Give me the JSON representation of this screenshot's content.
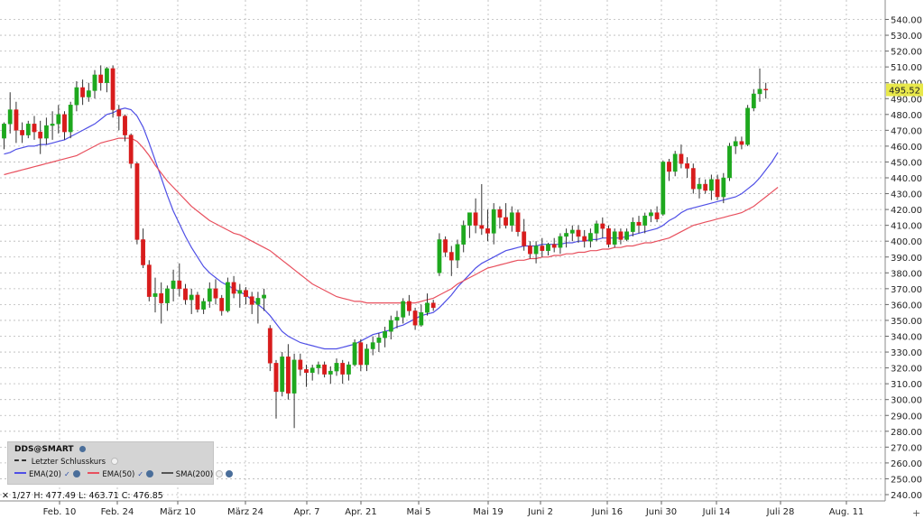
{
  "chart_data": {
    "type": "candlestick",
    "symbol": "DDS@SMART",
    "y_axis": {
      "min": 240,
      "max": 540,
      "step": 10,
      "position": "right",
      "tick_labels": [
        "240.00",
        "250.00",
        "260.00",
        "270.00",
        "280.00",
        "290.00",
        "300.00",
        "310.00",
        "320.00",
        "330.00",
        "340.00",
        "350.00",
        "360.00",
        "370.00",
        "380.00",
        "390.00",
        "400.00",
        "410.00",
        "420.00",
        "430.00",
        "440.00",
        "450.00",
        "460.00",
        "470.00",
        "480.00",
        "490.00",
        "500.00",
        "510.00",
        "520.00",
        "530.00",
        "540.00"
      ]
    },
    "x_axis": {
      "tick_labels": [
        "Feb. 10",
        "Feb. 24",
        "März 10",
        "März 24",
        "Apr. 7",
        "Apr. 21",
        "Mai 5",
        "Mai 19",
        "Juni 2",
        "Juni 16",
        "Juni 30",
        "Juli 14",
        "Juli 28",
        "Aug. 11"
      ]
    },
    "grid": true,
    "last_price": "495.52",
    "last_price_color": "#e8e84a",
    "up_color": "#1ea81e",
    "down_color": "#d81c1c",
    "candles": [
      {
        "o": 465,
        "h": 475,
        "l": 458,
        "c": 474
      },
      {
        "o": 474,
        "h": 494,
        "l": 468,
        "c": 483
      },
      {
        "o": 483,
        "h": 488,
        "l": 462,
        "c": 470
      },
      {
        "o": 470,
        "h": 475,
        "l": 462,
        "c": 467
      },
      {
        "o": 467,
        "h": 476,
        "l": 465,
        "c": 474
      },
      {
        "o": 474,
        "h": 479,
        "l": 464,
        "c": 469
      },
      {
        "o": 469,
        "h": 476,
        "l": 455,
        "c": 465
      },
      {
        "o": 465,
        "h": 478,
        "l": 461,
        "c": 473
      },
      {
        "o": 473,
        "h": 482,
        "l": 464,
        "c": 474
      },
      {
        "o": 474,
        "h": 486,
        "l": 468,
        "c": 480
      },
      {
        "o": 480,
        "h": 482,
        "l": 464,
        "c": 469
      },
      {
        "o": 469,
        "h": 488,
        "l": 465,
        "c": 486
      },
      {
        "o": 486,
        "h": 501,
        "l": 482,
        "c": 497
      },
      {
        "o": 497,
        "h": 502,
        "l": 486,
        "c": 491
      },
      {
        "o": 491,
        "h": 500,
        "l": 488,
        "c": 495
      },
      {
        "o": 495,
        "h": 508,
        "l": 490,
        "c": 505
      },
      {
        "o": 505,
        "h": 511,
        "l": 495,
        "c": 500
      },
      {
        "o": 500,
        "h": 510,
        "l": 494,
        "c": 509
      },
      {
        "o": 509,
        "h": 511,
        "l": 478,
        "c": 483
      },
      {
        "o": 483,
        "h": 486,
        "l": 470,
        "c": 479
      },
      {
        "o": 479,
        "h": 480,
        "l": 463,
        "c": 467
      },
      {
        "o": 467,
        "h": 468,
        "l": 446,
        "c": 449
      },
      {
        "o": 449,
        "h": 450,
        "l": 398,
        "c": 401
      },
      {
        "o": 401,
        "h": 408,
        "l": 383,
        "c": 385
      },
      {
        "o": 385,
        "h": 388,
        "l": 362,
        "c": 365
      },
      {
        "o": 365,
        "h": 377,
        "l": 355,
        "c": 367
      },
      {
        "o": 367,
        "h": 374,
        "l": 348,
        "c": 361
      },
      {
        "o": 361,
        "h": 372,
        "l": 356,
        "c": 370
      },
      {
        "o": 370,
        "h": 382,
        "l": 362,
        "c": 375
      },
      {
        "o": 375,
        "h": 386,
        "l": 365,
        "c": 370
      },
      {
        "o": 370,
        "h": 373,
        "l": 360,
        "c": 363
      },
      {
        "o": 363,
        "h": 370,
        "l": 354,
        "c": 366
      },
      {
        "o": 366,
        "h": 368,
        "l": 355,
        "c": 357
      },
      {
        "o": 357,
        "h": 364,
        "l": 354,
        "c": 362
      },
      {
        "o": 362,
        "h": 374,
        "l": 358,
        "c": 370
      },
      {
        "o": 370,
        "h": 376,
        "l": 360,
        "c": 364
      },
      {
        "o": 364,
        "h": 366,
        "l": 353,
        "c": 356
      },
      {
        "o": 356,
        "h": 377,
        "l": 355,
        "c": 374
      },
      {
        "o": 374,
        "h": 378,
        "l": 364,
        "c": 367
      },
      {
        "o": 367,
        "h": 373,
        "l": 358,
        "c": 369
      },
      {
        "o": 369,
        "h": 371,
        "l": 360,
        "c": 365
      },
      {
        "o": 365,
        "h": 368,
        "l": 354,
        "c": 360
      },
      {
        "o": 360,
        "h": 368,
        "l": 348,
        "c": 364
      },
      {
        "o": 364,
        "h": 370,
        "l": 356,
        "c": 366
      },
      {
        "o": 345,
        "h": 347,
        "l": 318,
        "c": 323
      },
      {
        "o": 323,
        "h": 325,
        "l": 288,
        "c": 305
      },
      {
        "o": 305,
        "h": 330,
        "l": 302,
        "c": 327
      },
      {
        "o": 327,
        "h": 335,
        "l": 300,
        "c": 304
      },
      {
        "o": 304,
        "h": 329,
        "l": 282,
        "c": 325
      },
      {
        "o": 325,
        "h": 329,
        "l": 315,
        "c": 319
      },
      {
        "o": 319,
        "h": 322,
        "l": 308,
        "c": 317
      },
      {
        "o": 317,
        "h": 322,
        "l": 312,
        "c": 320
      },
      {
        "o": 320,
        "h": 324,
        "l": 316,
        "c": 322
      },
      {
        "o": 322,
        "h": 324,
        "l": 314,
        "c": 316
      },
      {
        "o": 316,
        "h": 321,
        "l": 310,
        "c": 318
      },
      {
        "o": 318,
        "h": 326,
        "l": 315,
        "c": 323
      },
      {
        "o": 323,
        "h": 325,
        "l": 310,
        "c": 316
      },
      {
        "o": 316,
        "h": 324,
        "l": 312,
        "c": 322
      },
      {
        "o": 322,
        "h": 338,
        "l": 321,
        "c": 336
      },
      {
        "o": 336,
        "h": 338,
        "l": 318,
        "c": 322
      },
      {
        "o": 322,
        "h": 335,
        "l": 318,
        "c": 332
      },
      {
        "o": 332,
        "h": 340,
        "l": 328,
        "c": 336
      },
      {
        "o": 336,
        "h": 342,
        "l": 330,
        "c": 339
      },
      {
        "o": 339,
        "h": 346,
        "l": 333,
        "c": 343
      },
      {
        "o": 343,
        "h": 353,
        "l": 338,
        "c": 350
      },
      {
        "o": 350,
        "h": 356,
        "l": 345,
        "c": 352
      },
      {
        "o": 352,
        "h": 364,
        "l": 348,
        "c": 362
      },
      {
        "o": 362,
        "h": 366,
        "l": 353,
        "c": 356
      },
      {
        "o": 356,
        "h": 358,
        "l": 344,
        "c": 347
      },
      {
        "o": 347,
        "h": 360,
        "l": 346,
        "c": 355
      },
      {
        "o": 355,
        "h": 367,
        "l": 353,
        "c": 361
      },
      {
        "o": 361,
        "h": 363,
        "l": 356,
        "c": 358
      },
      {
        "o": 380,
        "h": 405,
        "l": 378,
        "c": 401
      },
      {
        "o": 401,
        "h": 403,
        "l": 390,
        "c": 393
      },
      {
        "o": 393,
        "h": 397,
        "l": 378,
        "c": 388
      },
      {
        "o": 388,
        "h": 401,
        "l": 383,
        "c": 398
      },
      {
        "o": 398,
        "h": 413,
        "l": 393,
        "c": 410
      },
      {
        "o": 410,
        "h": 418,
        "l": 402,
        "c": 418
      },
      {
        "o": 418,
        "h": 427,
        "l": 405,
        "c": 410
      },
      {
        "o": 410,
        "h": 436,
        "l": 404,
        "c": 408
      },
      {
        "o": 408,
        "h": 420,
        "l": 400,
        "c": 405
      },
      {
        "o": 405,
        "h": 424,
        "l": 398,
        "c": 420
      },
      {
        "o": 420,
        "h": 422,
        "l": 408,
        "c": 415
      },
      {
        "o": 415,
        "h": 424,
        "l": 408,
        "c": 410
      },
      {
        "o": 410,
        "h": 422,
        "l": 406,
        "c": 418
      },
      {
        "o": 418,
        "h": 420,
        "l": 403,
        "c": 406
      },
      {
        "o": 406,
        "h": 414,
        "l": 394,
        "c": 397
      },
      {
        "o": 397,
        "h": 400,
        "l": 389,
        "c": 392
      },
      {
        "o": 392,
        "h": 400,
        "l": 386,
        "c": 397
      },
      {
        "o": 397,
        "h": 402,
        "l": 390,
        "c": 394
      },
      {
        "o": 394,
        "h": 399,
        "l": 391,
        "c": 398
      },
      {
        "o": 398,
        "h": 402,
        "l": 393,
        "c": 396
      },
      {
        "o": 396,
        "h": 405,
        "l": 392,
        "c": 403
      },
      {
        "o": 403,
        "h": 408,
        "l": 396,
        "c": 405
      },
      {
        "o": 405,
        "h": 410,
        "l": 400,
        "c": 407
      },
      {
        "o": 407,
        "h": 410,
        "l": 399,
        "c": 403
      },
      {
        "o": 403,
        "h": 407,
        "l": 396,
        "c": 400
      },
      {
        "o": 400,
        "h": 408,
        "l": 396,
        "c": 405
      },
      {
        "o": 405,
        "h": 413,
        "l": 400,
        "c": 411
      },
      {
        "o": 411,
        "h": 415,
        "l": 402,
        "c": 408
      },
      {
        "o": 408,
        "h": 410,
        "l": 396,
        "c": 398
      },
      {
        "o": 398,
        "h": 408,
        "l": 396,
        "c": 406
      },
      {
        "o": 406,
        "h": 408,
        "l": 398,
        "c": 401
      },
      {
        "o": 401,
        "h": 408,
        "l": 400,
        "c": 406
      },
      {
        "o": 406,
        "h": 415,
        "l": 403,
        "c": 412
      },
      {
        "o": 412,
        "h": 416,
        "l": 405,
        "c": 410
      },
      {
        "o": 410,
        "h": 418,
        "l": 405,
        "c": 416
      },
      {
        "o": 416,
        "h": 420,
        "l": 412,
        "c": 418
      },
      {
        "o": 418,
        "h": 422,
        "l": 412,
        "c": 414
      },
      {
        "o": 417,
        "h": 451,
        "l": 416,
        "c": 450
      },
      {
        "o": 450,
        "h": 452,
        "l": 438,
        "c": 444
      },
      {
        "o": 444,
        "h": 457,
        "l": 441,
        "c": 455
      },
      {
        "o": 455,
        "h": 461,
        "l": 446,
        "c": 449
      },
      {
        "o": 449,
        "h": 453,
        "l": 440,
        "c": 446
      },
      {
        "o": 446,
        "h": 449,
        "l": 430,
        "c": 433
      },
      {
        "o": 433,
        "h": 440,
        "l": 427,
        "c": 436
      },
      {
        "o": 436,
        "h": 439,
        "l": 430,
        "c": 432
      },
      {
        "o": 432,
        "h": 442,
        "l": 426,
        "c": 439
      },
      {
        "o": 439,
        "h": 442,
        "l": 426,
        "c": 428
      },
      {
        "o": 428,
        "h": 443,
        "l": 424,
        "c": 440
      },
      {
        "o": 440,
        "h": 462,
        "l": 438,
        "c": 460
      },
      {
        "o": 460,
        "h": 466,
        "l": 455,
        "c": 463
      },
      {
        "o": 463,
        "h": 466,
        "l": 458,
        "c": 461
      },
      {
        "o": 461,
        "h": 486,
        "l": 460,
        "c": 484
      },
      {
        "o": 484,
        "h": 496,
        "l": 482,
        "c": 493
      },
      {
        "o": 493,
        "h": 509,
        "l": 488,
        "c": 496
      },
      {
        "o": 496,
        "h": 500,
        "l": 490,
        "c": 495.52
      }
    ],
    "series": [
      {
        "name": "EMA(20)",
        "color": "#4f4fe6",
        "values": [
          455,
          456,
          458,
          459,
          460,
          460,
          461,
          461,
          462,
          463,
          464,
          466,
          468,
          470,
          472,
          474,
          477,
          480,
          481,
          483,
          484,
          483,
          479,
          472,
          462,
          451,
          440,
          429,
          419,
          411,
          403,
          396,
          390,
          384,
          380,
          377,
          374,
          372,
          370,
          368,
          366,
          363,
          360,
          357,
          353,
          348,
          343,
          340,
          338,
          336,
          335,
          334,
          333,
          332,
          332,
          332,
          333,
          334,
          335,
          337,
          339,
          341,
          342,
          343,
          344,
          346,
          347,
          349,
          351,
          353,
          354,
          355,
          358,
          362,
          366,
          371,
          375,
          379,
          383,
          386,
          388,
          390,
          392,
          394,
          395,
          396,
          397,
          397,
          397,
          398,
          398,
          398,
          398,
          399,
          399,
          400,
          400,
          401,
          401,
          402,
          402,
          402,
          402,
          403,
          404,
          405,
          406,
          407,
          408,
          410,
          413,
          415,
          418,
          420,
          421,
          422,
          423,
          424,
          425,
          426,
          427,
          428,
          430,
          433,
          436,
          440,
          445,
          450,
          456
        ]
      },
      {
        "name": "EMA(50)",
        "color": "#e8505e",
        "values": [
          442,
          443,
          444,
          445,
          446,
          447,
          448,
          449,
          450,
          451,
          452,
          453,
          454,
          456,
          458,
          460,
          462,
          463,
          464,
          465,
          465,
          465,
          463,
          459,
          454,
          448,
          443,
          438,
          434,
          430,
          426,
          422,
          419,
          416,
          413,
          411,
          409,
          407,
          405,
          404,
          402,
          400,
          398,
          396,
          394,
          391,
          388,
          385,
          382,
          379,
          376,
          373,
          371,
          369,
          367,
          365,
          364,
          363,
          362,
          362,
          361,
          361,
          361,
          361,
          361,
          361,
          361,
          361,
          361,
          362,
          363,
          364,
          366,
          368,
          370,
          373,
          375,
          377,
          379,
          381,
          383,
          384,
          385,
          386,
          387,
          388,
          388,
          389,
          389,
          390,
          390,
          391,
          391,
          392,
          392,
          393,
          393,
          394,
          394,
          395,
          395,
          396,
          396,
          397,
          397,
          398,
          399,
          399,
          400,
          401,
          402,
          404,
          406,
          408,
          410,
          411,
          412,
          413,
          414,
          415,
          416,
          417,
          418,
          420,
          422,
          425,
          428,
          431,
          434
        ]
      }
    ],
    "legend": {
      "title": "DDS@SMART",
      "last_close_label": "Letzter Schlusskurs",
      "items": [
        "EMA(20)",
        "EMA(50)",
        "SMA(200)"
      ]
    },
    "ohlc_readout": "1/27  H: 477.49  L: 463.71  C: 476.85"
  }
}
